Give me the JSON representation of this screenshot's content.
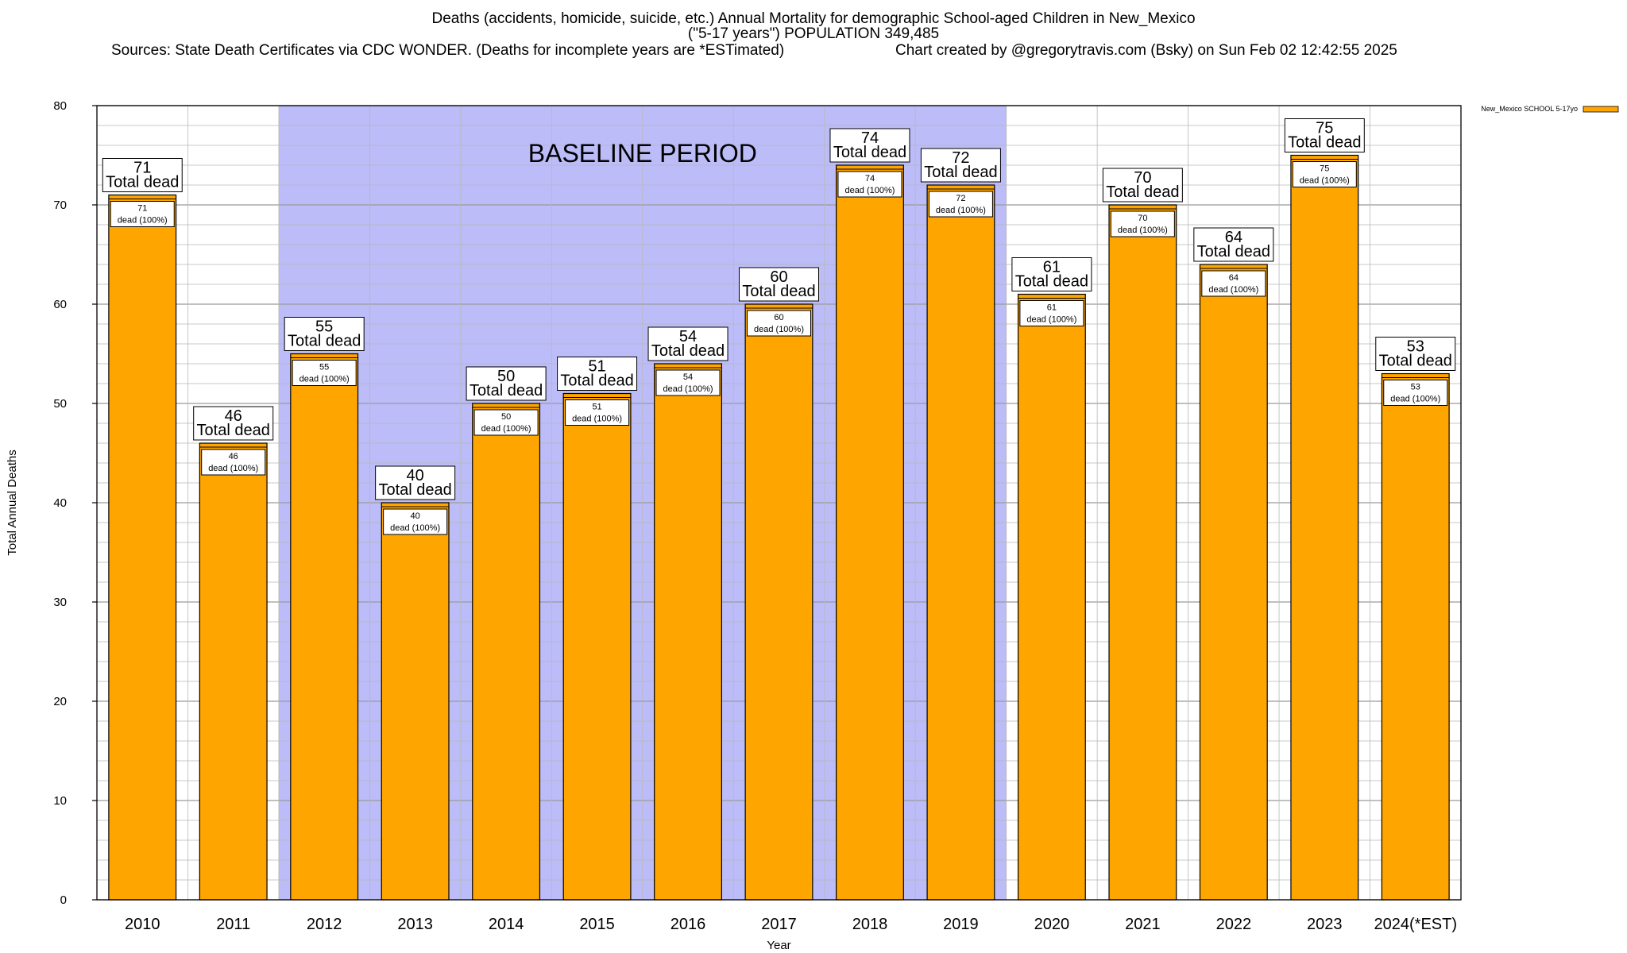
{
  "header": {
    "title_line1": "Deaths (accidents, homicide, suicide, etc.) Annual Mortality for demographic School-aged Children in New_Mexico",
    "title_line2": "(\"5-17 years\") POPULATION 349,485",
    "sources": "Sources: State Death Certificates via CDC WONDER. (Deaths for incomplete years are *ESTimated)",
    "credit": "Chart created by @gregorytravis.com (Bsky) on Sun Feb 02 12:42:55 2025"
  },
  "chart_data": {
    "type": "bar",
    "categories": [
      "2010",
      "2011",
      "2012",
      "2013",
      "2014",
      "2015",
      "2016",
      "2017",
      "2018",
      "2019",
      "2020",
      "2021",
      "2022",
      "2023",
      "2024(*EST)"
    ],
    "series": [
      {
        "name": "New_Mexico SCHOOL 5-17yo",
        "values": [
          71,
          46,
          55,
          40,
          50,
          51,
          54,
          60,
          74,
          72,
          61,
          70,
          64,
          75,
          53
        ]
      }
    ],
    "total_label": "Total dead",
    "segment_label": "dead (100%)",
    "xlabel": "Year",
    "ylabel": "Total Annual Deaths",
    "ylim": [
      0,
      80
    ],
    "yticks": [
      0,
      10,
      20,
      30,
      40,
      50,
      60,
      70,
      80
    ],
    "minor_grid_step": 2,
    "grid": true,
    "legend_position": "top-right",
    "annotation": {
      "text": "BASELINE PERIOD",
      "from_category": "2012",
      "to_category": "2019"
    },
    "colors": {
      "bar_fill": "#FFA500",
      "bar_edge": "#000000",
      "baseline_band": "#BCBCF8",
      "grid": "#B8B8B8"
    }
  }
}
